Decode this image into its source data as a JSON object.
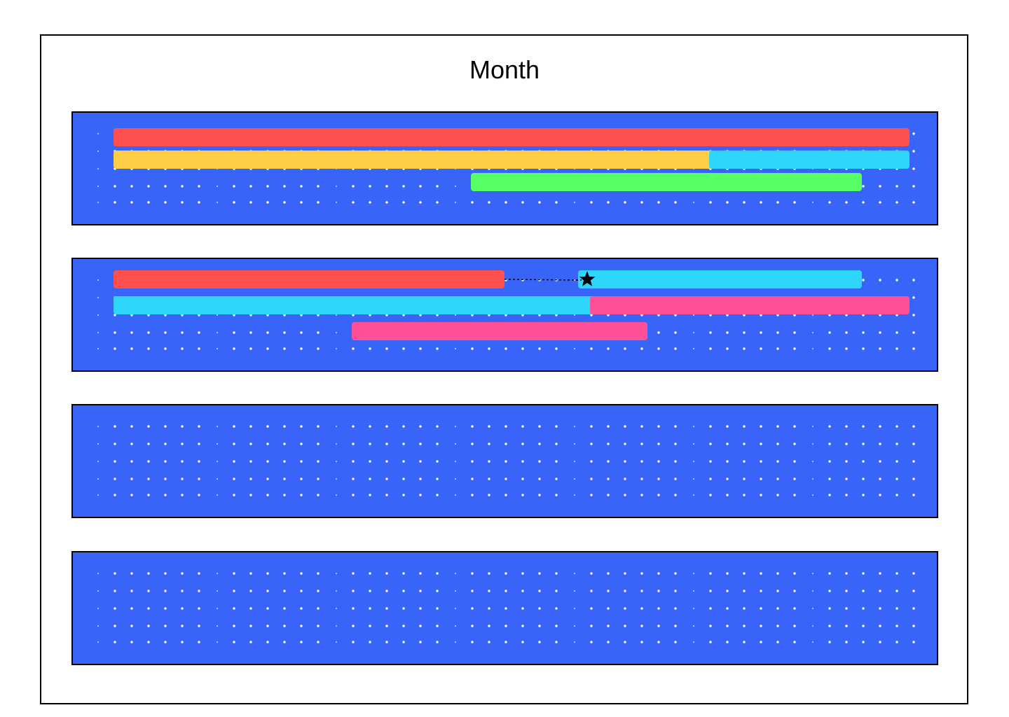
{
  "calendar": {
    "title": "Month",
    "colors": {
      "week_background": "#3865F7",
      "frame_border": "#000000",
      "slot_dot": "#FFFFFF",
      "red": "#FF5050",
      "yellow": "#FFCD46",
      "cyan": "#2ED6FC",
      "green": "#55FF64",
      "pink": "#FF4F98"
    },
    "weeks": [
      {
        "events": [
          {
            "color": "red",
            "row": 1,
            "start_day": 1,
            "end_day": 7
          },
          {
            "color": "yellow",
            "row": 2,
            "start_day": 1,
            "end_day": 5.6
          },
          {
            "color": "cyan",
            "row": 2,
            "start_day": 6,
            "end_day": 7
          },
          {
            "color": "green",
            "row": 3,
            "start_day": 4,
            "end_day": 6.6
          }
        ],
        "markers": []
      },
      {
        "events": [
          {
            "color": "red",
            "row": 1,
            "start_day": 1,
            "end_day": 3.6
          },
          {
            "color": "cyan",
            "row": 1,
            "start_day": 4.9,
            "end_day": 6.6
          },
          {
            "color": "cyan",
            "row": 2,
            "start_day": 1,
            "end_day": 4.8
          },
          {
            "color": "pink",
            "row": 2,
            "start_day": 5,
            "end_day": 7
          },
          {
            "color": "pink",
            "row": 3,
            "start_day": 3,
            "end_day": 4.8
          }
        ],
        "markers": [
          {
            "icon": "star-icon",
            "row": 1,
            "from_day": 3.6,
            "to_day": 4.4
          }
        ]
      },
      {
        "events": [],
        "markers": []
      },
      {
        "events": [],
        "markers": []
      }
    ]
  }
}
